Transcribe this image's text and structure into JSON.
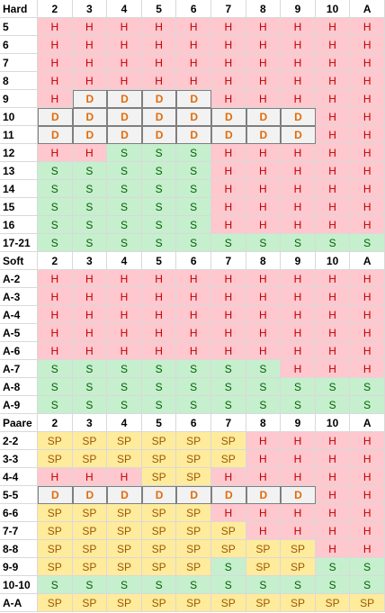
{
  "sections": [
    {
      "label": "Hard",
      "dealer": [
        "2",
        "3",
        "4",
        "5",
        "6",
        "7",
        "8",
        "9",
        "10",
        "A"
      ],
      "rows": [
        {
          "label": "5",
          "cells": [
            "H",
            "H",
            "H",
            "H",
            "H",
            "H",
            "H",
            "H",
            "H",
            "H"
          ]
        },
        {
          "label": "6",
          "cells": [
            "H",
            "H",
            "H",
            "H",
            "H",
            "H",
            "H",
            "H",
            "H",
            "H"
          ]
        },
        {
          "label": "7",
          "cells": [
            "H",
            "H",
            "H",
            "H",
            "H",
            "H",
            "H",
            "H",
            "H",
            "H"
          ]
        },
        {
          "label": "8",
          "cells": [
            "H",
            "H",
            "H",
            "H",
            "H",
            "H",
            "H",
            "H",
            "H",
            "H"
          ]
        },
        {
          "label": "9",
          "cells": [
            "H",
            "D",
            "D",
            "D",
            "D",
            "H",
            "H",
            "H",
            "H",
            "H"
          ]
        },
        {
          "label": "10",
          "cells": [
            "D",
            "D",
            "D",
            "D",
            "D",
            "D",
            "D",
            "D",
            "H",
            "H"
          ]
        },
        {
          "label": "11",
          "cells": [
            "D",
            "D",
            "D",
            "D",
            "D",
            "D",
            "D",
            "D",
            "H",
            "H"
          ]
        },
        {
          "label": "12",
          "cells": [
            "H",
            "H",
            "S",
            "S",
            "S",
            "H",
            "H",
            "H",
            "H",
            "H"
          ]
        },
        {
          "label": "13",
          "cells": [
            "S",
            "S",
            "S",
            "S",
            "S",
            "H",
            "H",
            "H",
            "H",
            "H"
          ]
        },
        {
          "label": "14",
          "cells": [
            "S",
            "S",
            "S",
            "S",
            "S",
            "H",
            "H",
            "H",
            "H",
            "H"
          ]
        },
        {
          "label": "15",
          "cells": [
            "S",
            "S",
            "S",
            "S",
            "S",
            "H",
            "H",
            "H",
            "H",
            "H"
          ]
        },
        {
          "label": "16",
          "cells": [
            "S",
            "S",
            "S",
            "S",
            "S",
            "H",
            "H",
            "H",
            "H",
            "H"
          ]
        },
        {
          "label": "17-21",
          "cells": [
            "S",
            "S",
            "S",
            "S",
            "S",
            "S",
            "S",
            "S",
            "S",
            "S"
          ]
        }
      ]
    },
    {
      "label": "Soft",
      "dealer": [
        "2",
        "3",
        "4",
        "5",
        "6",
        "7",
        "8",
        "9",
        "10",
        "A"
      ],
      "rows": [
        {
          "label": "A-2",
          "cells": [
            "H",
            "H",
            "H",
            "H",
            "H",
            "H",
            "H",
            "H",
            "H",
            "H"
          ]
        },
        {
          "label": "A-3",
          "cells": [
            "H",
            "H",
            "H",
            "H",
            "H",
            "H",
            "H",
            "H",
            "H",
            "H"
          ]
        },
        {
          "label": "A-4",
          "cells": [
            "H",
            "H",
            "H",
            "H",
            "H",
            "H",
            "H",
            "H",
            "H",
            "H"
          ]
        },
        {
          "label": "A-5",
          "cells": [
            "H",
            "H",
            "H",
            "H",
            "H",
            "H",
            "H",
            "H",
            "H",
            "H"
          ]
        },
        {
          "label": "A-6",
          "cells": [
            "H",
            "H",
            "H",
            "H",
            "H",
            "H",
            "H",
            "H",
            "H",
            "H"
          ]
        },
        {
          "label": "A-7",
          "cells": [
            "S",
            "S",
            "S",
            "S",
            "S",
            "S",
            "S",
            "H",
            "H",
            "H"
          ]
        },
        {
          "label": "A-8",
          "cells": [
            "S",
            "S",
            "S",
            "S",
            "S",
            "S",
            "S",
            "S",
            "S",
            "S"
          ]
        },
        {
          "label": "A-9",
          "cells": [
            "S",
            "S",
            "S",
            "S",
            "S",
            "S",
            "S",
            "S",
            "S",
            "S"
          ]
        }
      ]
    },
    {
      "label": "Paare",
      "dealer": [
        "2",
        "3",
        "4",
        "5",
        "6",
        "7",
        "8",
        "9",
        "10",
        "A"
      ],
      "rows": [
        {
          "label": "2-2",
          "cells": [
            "SP",
            "SP",
            "SP",
            "SP",
            "SP",
            "SP",
            "H",
            "H",
            "H",
            "H"
          ]
        },
        {
          "label": "3-3",
          "cells": [
            "SP",
            "SP",
            "SP",
            "SP",
            "SP",
            "SP",
            "H",
            "H",
            "H",
            "H"
          ]
        },
        {
          "label": "4-4",
          "cells": [
            "H",
            "H",
            "H",
            "SP",
            "SP",
            "H",
            "H",
            "H",
            "H",
            "H"
          ]
        },
        {
          "label": "5-5",
          "cells": [
            "D",
            "D",
            "D",
            "D",
            "D",
            "D",
            "D",
            "D",
            "H",
            "H"
          ]
        },
        {
          "label": "6-6",
          "cells": [
            "SP",
            "SP",
            "SP",
            "SP",
            "SP",
            "H",
            "H",
            "H",
            "H",
            "H"
          ]
        },
        {
          "label": "7-7",
          "cells": [
            "SP",
            "SP",
            "SP",
            "SP",
            "SP",
            "SP",
            "H",
            "H",
            "H",
            "H"
          ]
        },
        {
          "label": "8-8",
          "cells": [
            "SP",
            "SP",
            "SP",
            "SP",
            "SP",
            "SP",
            "SP",
            "SP",
            "H",
            "H"
          ]
        },
        {
          "label": "9-9",
          "cells": [
            "SP",
            "SP",
            "SP",
            "SP",
            "SP",
            "S",
            "SP",
            "SP",
            "S",
            "S"
          ]
        },
        {
          "label": "10-10",
          "cells": [
            "S",
            "S",
            "S",
            "S",
            "S",
            "S",
            "S",
            "S",
            "S",
            "S"
          ]
        },
        {
          "label": "A-A",
          "cells": [
            "SP",
            "SP",
            "SP",
            "SP",
            "SP",
            "SP",
            "SP",
            "SP",
            "SP",
            "SP"
          ]
        }
      ]
    }
  ]
}
